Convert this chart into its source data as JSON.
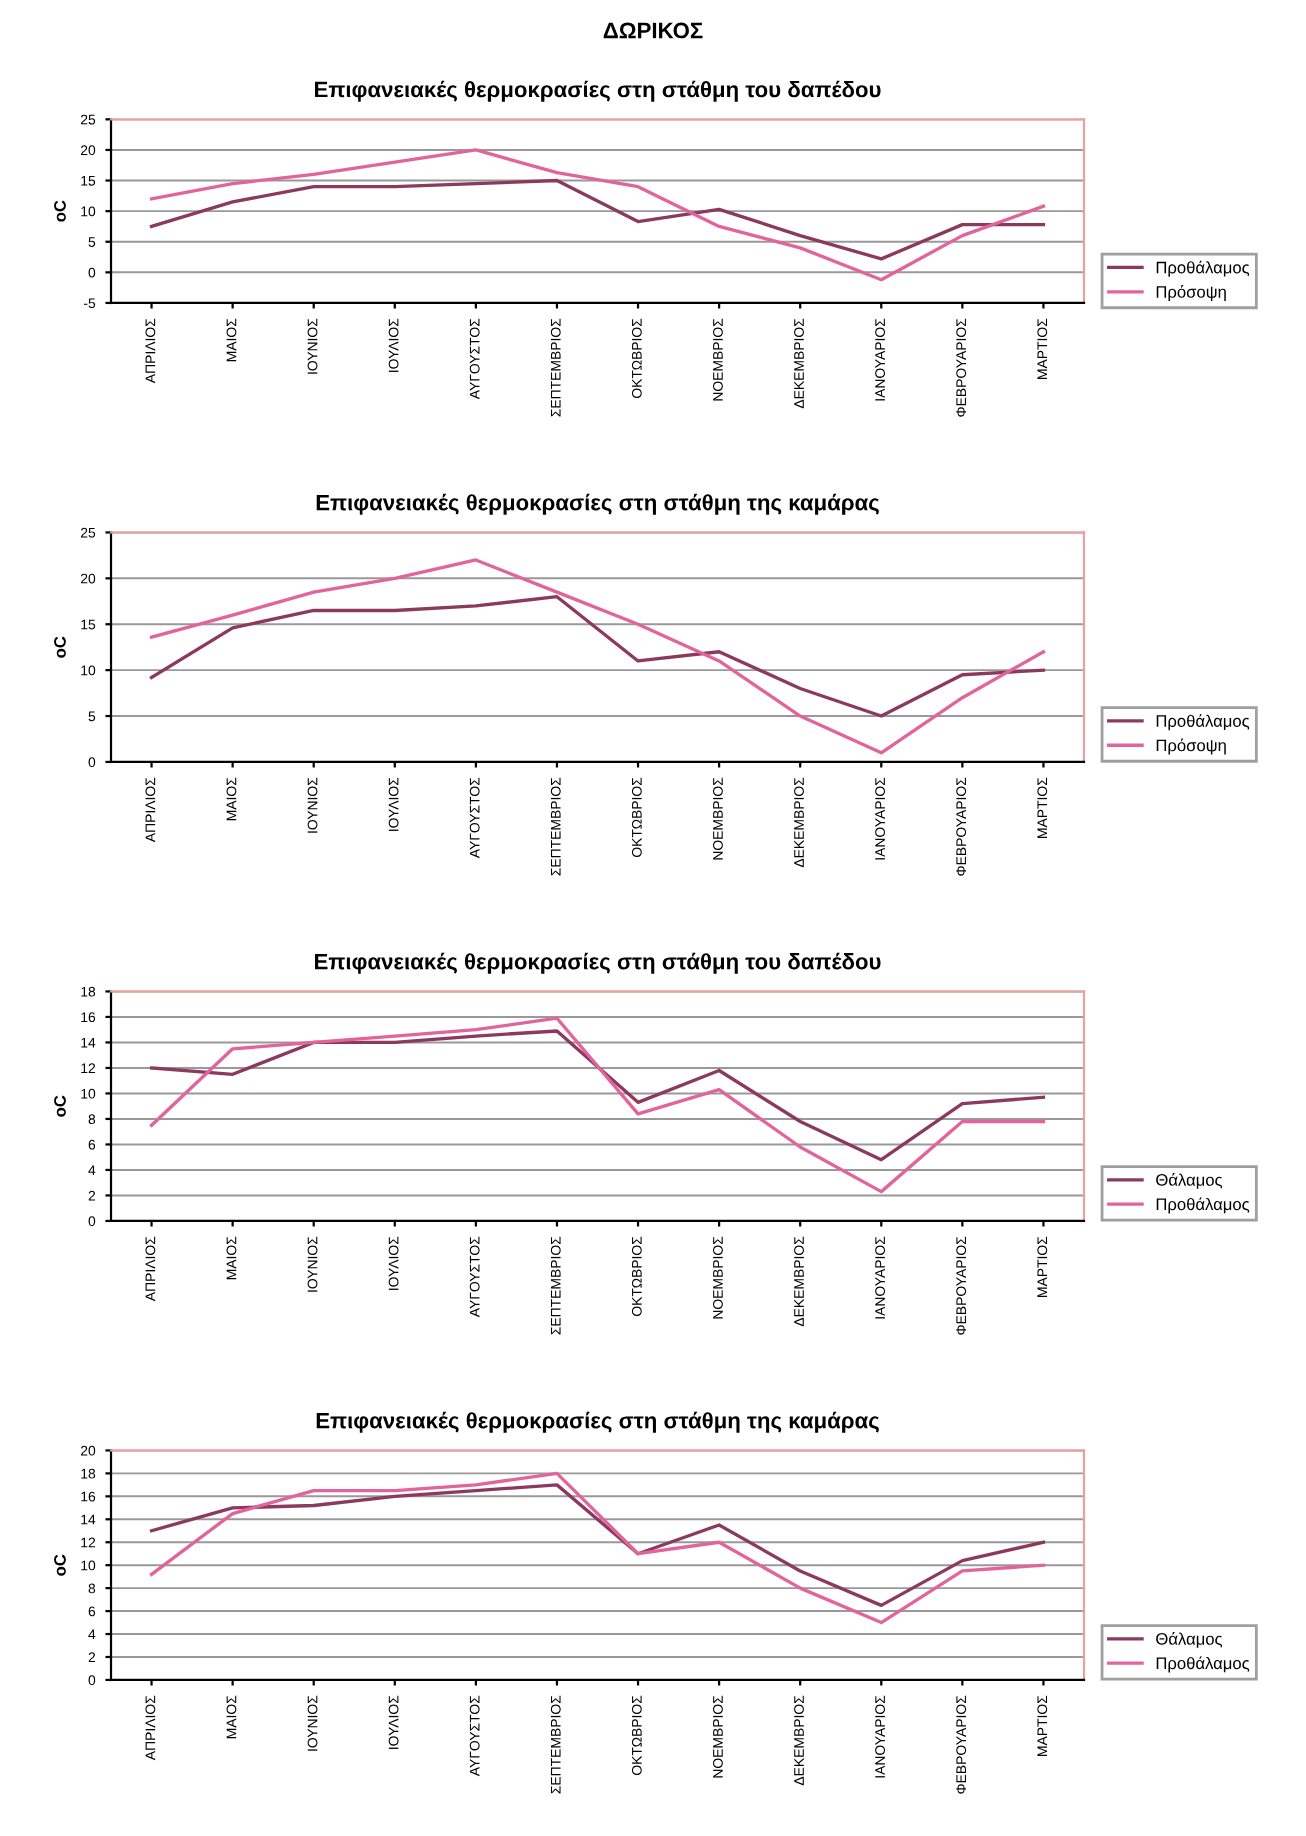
{
  "chart_data": [
    {
      "type": "line",
      "title": "ΔΩΡΙΚΟΣ",
      "subtitle": "Επιφανειακές θερμοκρασίες στη στάθμη του δαπέδου",
      "ylabel": "oC",
      "categories": [
        "ΑΠΡΙΛΙΟΣ",
        "ΜΑΙΟΣ",
        "ΙΟΥΝΙΟΣ",
        "ΙΟΥΛΙΟΣ",
        "ΑΥΓΟΥΣΤΟΣ",
        "ΣΕΠΤΕΜΒΡΙΟΣ",
        "ΟΚΤΩΒΡΙΟΣ",
        "ΝΟΕΜΒΡΙΟΣ",
        "ΔΕΚΕΜΒΡΙΟΣ",
        "ΙΑΝΟΥΑΡΙΟΣ",
        "ΦΕΒΡΟΥΑΡΙΟΣ",
        "ΜΑΡΤΙΟΣ"
      ],
      "series": [
        {
          "name": "Προθάλαμος",
          "color": "#8b3a5e",
          "values": [
            7.5,
            11.5,
            14,
            14,
            14.5,
            15,
            8.3,
            10.3,
            6,
            2.2,
            7.8,
            7.8
          ]
        },
        {
          "name": "Πρόσοψη",
          "color": "#e2649c",
          "values": [
            12,
            14.5,
            16,
            18,
            20,
            16.3,
            14,
            7.5,
            4,
            -1.2,
            6,
            10.8
          ]
        }
      ],
      "ylim": [
        -5,
        25
      ],
      "yticks": [
        -5,
        0,
        5,
        10,
        15,
        20,
        25
      ],
      "grid": "y",
      "legend": "right",
      "marker": "none",
      "line_style": "solid"
    },
    {
      "type": "line",
      "title": "Επιφανειακές θερμοκρασίες στη στάθμη της καμάρας",
      "ylabel": "oC",
      "categories": [
        "ΑΠΡΙΛΙΟΣ",
        "ΜΑΙΟΣ",
        "ΙΟΥΝΙΟΣ",
        "ΙΟΥΛΙΟΣ",
        "ΑΥΓΟΥΣΤΟΣ",
        "ΣΕΠΤΕΜΒΡΙΟΣ",
        "ΟΚΤΩΒΡΙΟΣ",
        "ΝΟΕΜΒΡΙΟΣ",
        "ΔΕΚΕΜΒΡΙΟΣ",
        "ΙΑΝΟΥΑΡΙΟΣ",
        "ΦΕΒΡΟΥΑΡΙΟΣ",
        "ΜΑΡΤΙΟΣ"
      ],
      "series": [
        {
          "name": "Προθάλαμος",
          "color": "#8b3a5e",
          "values": [
            9.2,
            14.6,
            16.5,
            16.5,
            17,
            18,
            11,
            12,
            8,
            5,
            9.5,
            10
          ]
        },
        {
          "name": "Πρόσοψη",
          "color": "#e2649c",
          "values": [
            13.6,
            16,
            18.5,
            20,
            22,
            18.5,
            15,
            11,
            5,
            1,
            7,
            12
          ]
        }
      ],
      "ylim": [
        0,
        25
      ],
      "yticks": [
        0,
        5,
        10,
        15,
        20,
        25
      ],
      "grid": "y",
      "legend": "right",
      "marker": "none",
      "line_style": "solid"
    },
    {
      "type": "line",
      "title": "Επιφανειακές θερμοκρασίες στη στάθμη του δαπέδου",
      "ylabel": "oC",
      "categories": [
        "ΑΠΡΙΛΙΟΣ",
        "ΜΑΙΟΣ",
        "ΙΟΥΝΙΟΣ",
        "ΙΟΥΛΙΟΣ",
        "ΑΥΓΟΥΣΤΟΣ",
        "ΣΕΠΤΕΜΒΡΙΟΣ",
        "ΟΚΤΩΒΡΙΟΣ",
        "ΝΟΕΜΒΡΙΟΣ",
        "ΔΕΚΕΜΒΡΙΟΣ",
        "ΙΑΝΟΥΑΡΙΟΣ",
        "ΦΕΒΡΟΥΑΡΙΟΣ",
        "ΜΑΡΤΙΟΣ"
      ],
      "series": [
        {
          "name": "Θάλαμος",
          "color": "#8b3a5e",
          "values": [
            12,
            11.5,
            14,
            14,
            14.5,
            14.9,
            9.3,
            11.8,
            7.8,
            4.8,
            9.2,
            9.7
          ]
        },
        {
          "name": "Προθάλαμος",
          "color": "#e2649c",
          "values": [
            7.5,
            13.5,
            14,
            14.5,
            15,
            15.9,
            8.4,
            10.3,
            5.8,
            2.3,
            7.8,
            7.8
          ]
        }
      ],
      "ylim": [
        0,
        18
      ],
      "yticks": [
        0,
        2,
        4,
        6,
        8,
        10,
        12,
        14,
        16,
        18
      ],
      "grid": "y",
      "legend": "right",
      "marker": "none",
      "line_style": "solid"
    },
    {
      "type": "line",
      "title": "Επιφανειακές θερμοκρασίες στη στάθμη της καμάρας",
      "ylabel": "oC",
      "categories": [
        "ΑΠΡΙΛΙΟΣ",
        "ΜΑΙΟΣ",
        "ΙΟΥΝΙΟΣ",
        "ΙΟΥΛΙΟΣ",
        "ΑΥΓΟΥΣΤΟΣ",
        "ΣΕΠΤΕΜΒΡΙΟΣ",
        "ΟΚΤΩΒΡΙΟΣ",
        "ΝΟΕΜΒΡΙΟΣ",
        "ΔΕΚΕΜΒΡΙΟΣ",
        "ΙΑΝΟΥΑΡΙΟΣ",
        "ΦΕΒΡΟΥΑΡΙΟΣ",
        "ΜΑΡΤΙΟΣ"
      ],
      "series": [
        {
          "name": "Θάλαμος",
          "color": "#8b3a5e",
          "values": [
            13,
            15,
            15.2,
            16,
            16.5,
            17,
            11,
            13.5,
            9.5,
            6.5,
            10.4,
            12
          ]
        },
        {
          "name": "Προθάλαμος",
          "color": "#e2649c",
          "values": [
            9.2,
            14.5,
            16.5,
            16.5,
            17,
            18,
            11,
            12,
            8,
            5,
            9.5,
            10
          ]
        }
      ],
      "ylim": [
        0,
        20
      ],
      "yticks": [
        0,
        2,
        4,
        6,
        8,
        10,
        12,
        14,
        16,
        18,
        20
      ],
      "grid": "y",
      "legend": "right",
      "marker": "none",
      "line_style": "solid"
    }
  ]
}
